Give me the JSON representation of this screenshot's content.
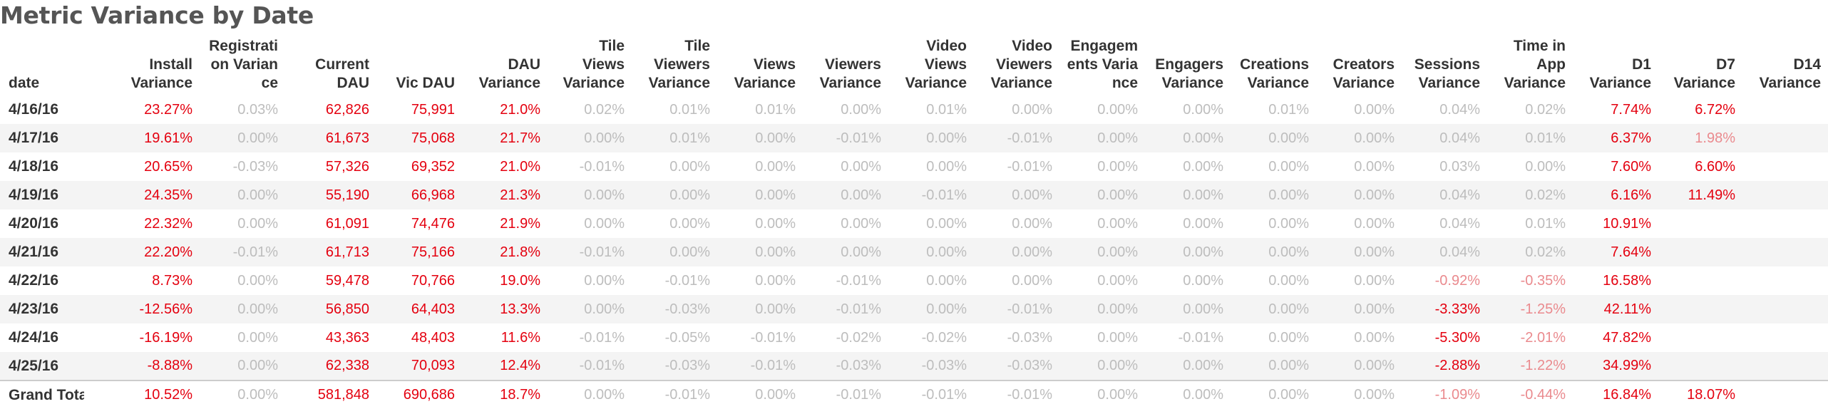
{
  "title": "Metric Variance by Date",
  "headers": [
    "date",
    "Install Variance",
    "Registrati on Varian ce",
    "Current DAU",
    "Vic DAU",
    "DAU Variance",
    "Tile Views Variance",
    "Tile Viewers Variance",
    "Views Variance",
    "Viewers Variance",
    "Video Views Variance",
    "Video Viewers Variance",
    "Engagem ents Varia nce",
    "Engagers Variance",
    "Creations Variance",
    "Creators Variance",
    "Sessions Variance",
    "Time in App Variance",
    "D1 Variance",
    "D7 Variance",
    "D14 Variance"
  ],
  "header_lines": [
    [
      "date"
    ],
    [
      "Install",
      "Variance"
    ],
    [
      "Registrati",
      "on Varian",
      "ce"
    ],
    [
      "Current",
      "DAU"
    ],
    [
      "Vic DAU"
    ],
    [
      "DAU",
      "Variance"
    ],
    [
      "Tile",
      "Views",
      "Variance"
    ],
    [
      "Tile",
      "Viewers",
      "Variance"
    ],
    [
      "Views",
      "Variance"
    ],
    [
      "Viewers",
      "Variance"
    ],
    [
      "Video",
      "Views",
      "Variance"
    ],
    [
      "Video",
      "Viewers",
      "Variance"
    ],
    [
      "Engagem",
      "ents Varia",
      "nce"
    ],
    [
      "Engagers",
      "Variance"
    ],
    [
      "Creations",
      "Variance"
    ],
    [
      "Creators",
      "Variance"
    ],
    [
      "Sessions",
      "Variance"
    ],
    [
      "Time in",
      "App",
      "Variance"
    ],
    [
      "D1",
      "Variance"
    ],
    [
      "D7",
      "Variance"
    ],
    [
      "D14",
      "Variance"
    ]
  ],
  "colors": {
    "red": "#e4000f",
    "gray": "#bdbdbd",
    "pink": "#ea8a8e",
    "stripe": "#f4f4f4"
  },
  "rows": [
    {
      "date": "4/16/16",
      "cells": [
        [
          "23.27%",
          "r"
        ],
        [
          "0.03%",
          "g"
        ],
        [
          "62,826",
          "r"
        ],
        [
          "75,991",
          "r"
        ],
        [
          "21.0%",
          "r"
        ],
        [
          "0.02%",
          "g"
        ],
        [
          "0.01%",
          "g"
        ],
        [
          "0.01%",
          "g"
        ],
        [
          "0.00%",
          "g"
        ],
        [
          "0.01%",
          "g"
        ],
        [
          "0.00%",
          "g"
        ],
        [
          "0.00%",
          "g"
        ],
        [
          "0.00%",
          "g"
        ],
        [
          "0.01%",
          "g"
        ],
        [
          "0.00%",
          "g"
        ],
        [
          "0.04%",
          "g"
        ],
        [
          "0.02%",
          "g"
        ],
        [
          "7.74%",
          "r"
        ],
        [
          "6.72%",
          "r"
        ],
        [
          "",
          ""
        ]
      ]
    },
    {
      "date": "4/17/16",
      "cells": [
        [
          "19.61%",
          "r"
        ],
        [
          "0.00%",
          "g"
        ],
        [
          "61,673",
          "r"
        ],
        [
          "75,068",
          "r"
        ],
        [
          "21.7%",
          "r"
        ],
        [
          "0.00%",
          "g"
        ],
        [
          "0.01%",
          "g"
        ],
        [
          "0.00%",
          "g"
        ],
        [
          "-0.01%",
          "g"
        ],
        [
          "0.00%",
          "g"
        ],
        [
          "-0.01%",
          "g"
        ],
        [
          "0.00%",
          "g"
        ],
        [
          "0.00%",
          "g"
        ],
        [
          "0.00%",
          "g"
        ],
        [
          "0.00%",
          "g"
        ],
        [
          "0.04%",
          "g"
        ],
        [
          "0.01%",
          "g"
        ],
        [
          "6.37%",
          "r"
        ],
        [
          "1.98%",
          "p"
        ],
        [
          "",
          ""
        ]
      ]
    },
    {
      "date": "4/18/16",
      "cells": [
        [
          "20.65%",
          "r"
        ],
        [
          "-0.03%",
          "g"
        ],
        [
          "57,326",
          "r"
        ],
        [
          "69,352",
          "r"
        ],
        [
          "21.0%",
          "r"
        ],
        [
          "-0.01%",
          "g"
        ],
        [
          "0.00%",
          "g"
        ],
        [
          "0.00%",
          "g"
        ],
        [
          "0.00%",
          "g"
        ],
        [
          "0.00%",
          "g"
        ],
        [
          "-0.01%",
          "g"
        ],
        [
          "0.00%",
          "g"
        ],
        [
          "0.00%",
          "g"
        ],
        [
          "0.00%",
          "g"
        ],
        [
          "0.00%",
          "g"
        ],
        [
          "0.03%",
          "g"
        ],
        [
          "0.00%",
          "g"
        ],
        [
          "7.60%",
          "r"
        ],
        [
          "6.60%",
          "r"
        ],
        [
          "",
          ""
        ]
      ]
    },
    {
      "date": "4/19/16",
      "cells": [
        [
          "24.35%",
          "r"
        ],
        [
          "0.00%",
          "g"
        ],
        [
          "55,190",
          "r"
        ],
        [
          "66,968",
          "r"
        ],
        [
          "21.3%",
          "r"
        ],
        [
          "0.00%",
          "g"
        ],
        [
          "0.00%",
          "g"
        ],
        [
          "0.00%",
          "g"
        ],
        [
          "0.00%",
          "g"
        ],
        [
          "-0.01%",
          "g"
        ],
        [
          "0.00%",
          "g"
        ],
        [
          "0.00%",
          "g"
        ],
        [
          "0.00%",
          "g"
        ],
        [
          "0.00%",
          "g"
        ],
        [
          "0.00%",
          "g"
        ],
        [
          "0.04%",
          "g"
        ],
        [
          "0.02%",
          "g"
        ],
        [
          "6.16%",
          "r"
        ],
        [
          "11.49%",
          "r"
        ],
        [
          "",
          ""
        ]
      ]
    },
    {
      "date": "4/20/16",
      "cells": [
        [
          "22.32%",
          "r"
        ],
        [
          "0.00%",
          "g"
        ],
        [
          "61,091",
          "r"
        ],
        [
          "74,476",
          "r"
        ],
        [
          "21.9%",
          "r"
        ],
        [
          "0.00%",
          "g"
        ],
        [
          "0.00%",
          "g"
        ],
        [
          "0.00%",
          "g"
        ],
        [
          "0.00%",
          "g"
        ],
        [
          "0.00%",
          "g"
        ],
        [
          "0.00%",
          "g"
        ],
        [
          "0.00%",
          "g"
        ],
        [
          "0.00%",
          "g"
        ],
        [
          "0.00%",
          "g"
        ],
        [
          "0.00%",
          "g"
        ],
        [
          "0.04%",
          "g"
        ],
        [
          "0.01%",
          "g"
        ],
        [
          "10.91%",
          "r"
        ],
        [
          "",
          ""
        ],
        [
          "",
          ""
        ]
      ]
    },
    {
      "date": "4/21/16",
      "cells": [
        [
          "22.20%",
          "r"
        ],
        [
          "-0.01%",
          "g"
        ],
        [
          "61,713",
          "r"
        ],
        [
          "75,166",
          "r"
        ],
        [
          "21.8%",
          "r"
        ],
        [
          "-0.01%",
          "g"
        ],
        [
          "0.00%",
          "g"
        ],
        [
          "0.00%",
          "g"
        ],
        [
          "0.00%",
          "g"
        ],
        [
          "0.00%",
          "g"
        ],
        [
          "0.00%",
          "g"
        ],
        [
          "0.00%",
          "g"
        ],
        [
          "0.00%",
          "g"
        ],
        [
          "0.00%",
          "g"
        ],
        [
          "0.00%",
          "g"
        ],
        [
          "0.04%",
          "g"
        ],
        [
          "0.02%",
          "g"
        ],
        [
          "7.64%",
          "r"
        ],
        [
          "",
          ""
        ],
        [
          "",
          ""
        ]
      ]
    },
    {
      "date": "4/22/16",
      "cells": [
        [
          "8.73%",
          "r"
        ],
        [
          "0.00%",
          "g"
        ],
        [
          "59,478",
          "r"
        ],
        [
          "70,766",
          "r"
        ],
        [
          "19.0%",
          "r"
        ],
        [
          "0.00%",
          "g"
        ],
        [
          "-0.01%",
          "g"
        ],
        [
          "0.00%",
          "g"
        ],
        [
          "-0.01%",
          "g"
        ],
        [
          "0.00%",
          "g"
        ],
        [
          "0.00%",
          "g"
        ],
        [
          "0.00%",
          "g"
        ],
        [
          "0.00%",
          "g"
        ],
        [
          "0.00%",
          "g"
        ],
        [
          "0.00%",
          "g"
        ],
        [
          "-0.92%",
          "p"
        ],
        [
          "-0.35%",
          "p"
        ],
        [
          "16.58%",
          "r"
        ],
        [
          "",
          ""
        ],
        [
          "",
          ""
        ]
      ]
    },
    {
      "date": "4/23/16",
      "cells": [
        [
          "-12.56%",
          "r"
        ],
        [
          "0.00%",
          "g"
        ],
        [
          "56,850",
          "r"
        ],
        [
          "64,403",
          "r"
        ],
        [
          "13.3%",
          "r"
        ],
        [
          "0.00%",
          "g"
        ],
        [
          "-0.03%",
          "g"
        ],
        [
          "0.00%",
          "g"
        ],
        [
          "-0.01%",
          "g"
        ],
        [
          "0.00%",
          "g"
        ],
        [
          "-0.01%",
          "g"
        ],
        [
          "0.00%",
          "g"
        ],
        [
          "0.00%",
          "g"
        ],
        [
          "0.00%",
          "g"
        ],
        [
          "0.00%",
          "g"
        ],
        [
          "-3.33%",
          "r"
        ],
        [
          "-1.25%",
          "p"
        ],
        [
          "42.11%",
          "r"
        ],
        [
          "",
          ""
        ],
        [
          "",
          ""
        ]
      ]
    },
    {
      "date": "4/24/16",
      "cells": [
        [
          "-16.19%",
          "r"
        ],
        [
          "0.00%",
          "g"
        ],
        [
          "43,363",
          "r"
        ],
        [
          "48,403",
          "r"
        ],
        [
          "11.6%",
          "r"
        ],
        [
          "-0.01%",
          "g"
        ],
        [
          "-0.05%",
          "g"
        ],
        [
          "-0.01%",
          "g"
        ],
        [
          "-0.02%",
          "g"
        ],
        [
          "-0.02%",
          "g"
        ],
        [
          "-0.03%",
          "g"
        ],
        [
          "0.00%",
          "g"
        ],
        [
          "-0.01%",
          "g"
        ],
        [
          "0.00%",
          "g"
        ],
        [
          "0.00%",
          "g"
        ],
        [
          "-5.30%",
          "r"
        ],
        [
          "-2.01%",
          "p"
        ],
        [
          "47.82%",
          "r"
        ],
        [
          "",
          ""
        ],
        [
          "",
          ""
        ]
      ]
    },
    {
      "date": "4/25/16",
      "cells": [
        [
          "-8.88%",
          "r"
        ],
        [
          "0.00%",
          "g"
        ],
        [
          "62,338",
          "r"
        ],
        [
          "70,093",
          "r"
        ],
        [
          "12.4%",
          "r"
        ],
        [
          "-0.01%",
          "g"
        ],
        [
          "-0.03%",
          "g"
        ],
        [
          "-0.01%",
          "g"
        ],
        [
          "-0.03%",
          "g"
        ],
        [
          "-0.03%",
          "g"
        ],
        [
          "-0.03%",
          "g"
        ],
        [
          "0.00%",
          "g"
        ],
        [
          "0.00%",
          "g"
        ],
        [
          "0.00%",
          "g"
        ],
        [
          "0.00%",
          "g"
        ],
        [
          "-2.88%",
          "r"
        ],
        [
          "-1.22%",
          "p"
        ],
        [
          "34.99%",
          "r"
        ],
        [
          "",
          ""
        ],
        [
          "",
          ""
        ]
      ]
    }
  ],
  "total": {
    "label": "Grand Total",
    "cells": [
      [
        "10.52%",
        "r"
      ],
      [
        "0.00%",
        "g"
      ],
      [
        "581,848",
        "r"
      ],
      [
        "690,686",
        "r"
      ],
      [
        "18.7%",
        "r"
      ],
      [
        "0.00%",
        "g"
      ],
      [
        "-0.01%",
        "g"
      ],
      [
        "0.00%",
        "g"
      ],
      [
        "-0.01%",
        "g"
      ],
      [
        "-0.01%",
        "g"
      ],
      [
        "-0.01%",
        "g"
      ],
      [
        "0.00%",
        "g"
      ],
      [
        "0.00%",
        "g"
      ],
      [
        "0.00%",
        "g"
      ],
      [
        "0.00%",
        "g"
      ],
      [
        "-1.09%",
        "p"
      ],
      [
        "-0.44%",
        "p"
      ],
      [
        "16.84%",
        "r"
      ],
      [
        "18.07%",
        "r"
      ],
      [
        "",
        ""
      ]
    ]
  }
}
